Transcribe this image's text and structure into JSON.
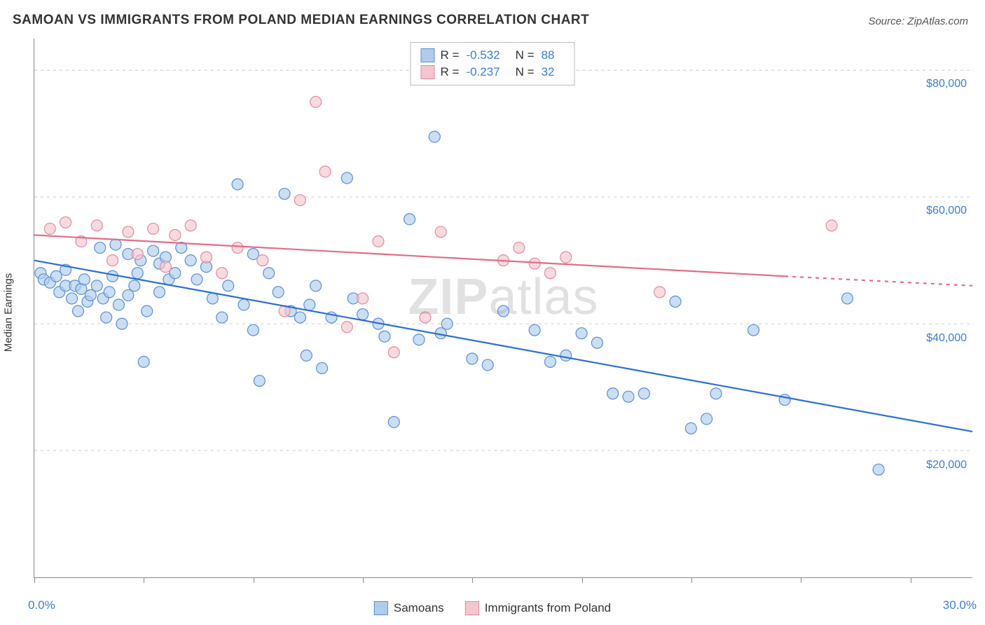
{
  "title": "SAMOAN VS IMMIGRANTS FROM POLAND MEDIAN EARNINGS CORRELATION CHART",
  "source": "Source: ZipAtlas.com",
  "watermark_bold": "ZIP",
  "watermark_light": "atlas",
  "ylabel": "Median Earnings",
  "chart": {
    "type": "scatter",
    "xlim": [
      0,
      30
    ],
    "ylim": [
      0,
      85000
    ],
    "x_axis_min_label": "0.0%",
    "x_axis_max_label": "30.0%",
    "y_ticks": [
      20000,
      40000,
      60000,
      80000
    ],
    "y_tick_labels": [
      "$20,000",
      "$40,000",
      "$60,000",
      "$80,000"
    ],
    "x_tick_positions": [
      0,
      3.5,
      7,
      10.5,
      14,
      17.5,
      21,
      24.5,
      28
    ],
    "grid_color": "#cccccc",
    "background_color": "#ffffff",
    "axis_color": "#888888",
    "axis_label_color": "#3b7dd8",
    "marker_radius": 8,
    "marker_stroke_width": 1.2,
    "line_width": 2.2
  },
  "series": [
    {
      "name": "Samoans",
      "fill": "#aeccee",
      "fill_opacity": 0.65,
      "stroke": "#5b8fd6",
      "line_color": "#2a6fd6",
      "R": "-0.532",
      "N": "88",
      "regression": {
        "x1": 0,
        "y1": 50000,
        "x2": 30,
        "y2": 23000,
        "dash_from_x": 30
      },
      "points": [
        [
          0.2,
          48000
        ],
        [
          0.3,
          47000
        ],
        [
          0.5,
          46500
        ],
        [
          0.7,
          47500
        ],
        [
          0.8,
          45000
        ],
        [
          1.0,
          46000
        ],
        [
          1.0,
          48500
        ],
        [
          1.2,
          44000
        ],
        [
          1.3,
          46000
        ],
        [
          1.4,
          42000
        ],
        [
          1.5,
          45500
        ],
        [
          1.6,
          47000
        ],
        [
          1.7,
          43500
        ],
        [
          1.8,
          44500
        ],
        [
          2.0,
          46000
        ],
        [
          2.1,
          52000
        ],
        [
          2.2,
          44000
        ],
        [
          2.3,
          41000
        ],
        [
          2.4,
          45000
        ],
        [
          2.5,
          47500
        ],
        [
          2.6,
          52500
        ],
        [
          2.7,
          43000
        ],
        [
          2.8,
          40000
        ],
        [
          3.0,
          51000
        ],
        [
          3.0,
          44500
        ],
        [
          3.2,
          46000
        ],
        [
          3.3,
          48000
        ],
        [
          3.4,
          50000
        ],
        [
          3.5,
          34000
        ],
        [
          3.6,
          42000
        ],
        [
          3.8,
          51500
        ],
        [
          4.0,
          49500
        ],
        [
          4.0,
          45000
        ],
        [
          4.2,
          50500
        ],
        [
          4.3,
          47000
        ],
        [
          4.5,
          48000
        ],
        [
          4.7,
          52000
        ],
        [
          5.0,
          50000
        ],
        [
          5.2,
          47000
        ],
        [
          5.5,
          49000
        ],
        [
          5.7,
          44000
        ],
        [
          6.0,
          41000
        ],
        [
          6.2,
          46000
        ],
        [
          6.5,
          62000
        ],
        [
          6.7,
          43000
        ],
        [
          7.0,
          39000
        ],
        [
          7.0,
          51000
        ],
        [
          7.2,
          31000
        ],
        [
          7.5,
          48000
        ],
        [
          7.8,
          45000
        ],
        [
          8.0,
          60500
        ],
        [
          8.2,
          42000
        ],
        [
          8.5,
          41000
        ],
        [
          8.7,
          35000
        ],
        [
          8.8,
          43000
        ],
        [
          9.0,
          46000
        ],
        [
          9.2,
          33000
        ],
        [
          9.5,
          41000
        ],
        [
          10.0,
          63000
        ],
        [
          10.2,
          44000
        ],
        [
          10.5,
          41500
        ],
        [
          11.0,
          40000
        ],
        [
          11.2,
          38000
        ],
        [
          11.5,
          24500
        ],
        [
          12.0,
          56500
        ],
        [
          12.3,
          37500
        ],
        [
          12.8,
          69500
        ],
        [
          13.0,
          38500
        ],
        [
          13.2,
          40000
        ],
        [
          14.0,
          34500
        ],
        [
          14.5,
          33500
        ],
        [
          15.0,
          42000
        ],
        [
          16.0,
          39000
        ],
        [
          16.5,
          34000
        ],
        [
          17.0,
          35000
        ],
        [
          17.5,
          38500
        ],
        [
          18.0,
          37000
        ],
        [
          18.5,
          29000
        ],
        [
          19.0,
          28500
        ],
        [
          19.5,
          29000
        ],
        [
          20.5,
          43500
        ],
        [
          21.0,
          23500
        ],
        [
          21.5,
          25000
        ],
        [
          21.8,
          29000
        ],
        [
          23.0,
          39000
        ],
        [
          24.0,
          28000
        ],
        [
          26.0,
          44000
        ],
        [
          27.0,
          17000
        ]
      ]
    },
    {
      "name": "Immigrants from Poland",
      "fill": "#f4c6ce",
      "fill_opacity": 0.65,
      "stroke": "#e48ba0",
      "line_color": "#e26d88",
      "R": "-0.237",
      "N": "32",
      "regression": {
        "x1": 0,
        "y1": 54000,
        "x2": 24,
        "y2": 47500,
        "dash_from_x": 24,
        "x3": 30,
        "y3": 46000
      },
      "points": [
        [
          0.5,
          55000
        ],
        [
          1.0,
          56000
        ],
        [
          1.5,
          53000
        ],
        [
          2.0,
          55500
        ],
        [
          2.5,
          50000
        ],
        [
          3.0,
          54500
        ],
        [
          3.3,
          51000
        ],
        [
          3.8,
          55000
        ],
        [
          4.2,
          49000
        ],
        [
          4.5,
          54000
        ],
        [
          5.0,
          55500
        ],
        [
          5.5,
          50500
        ],
        [
          6.0,
          48000
        ],
        [
          6.5,
          52000
        ],
        [
          7.3,
          50000
        ],
        [
          8.0,
          42000
        ],
        [
          8.5,
          59500
        ],
        [
          9.0,
          75000
        ],
        [
          9.3,
          64000
        ],
        [
          10.0,
          39500
        ],
        [
          10.5,
          44000
        ],
        [
          11.0,
          53000
        ],
        [
          11.5,
          35500
        ],
        [
          12.5,
          41000
        ],
        [
          13.0,
          54500
        ],
        [
          15.0,
          50000
        ],
        [
          15.5,
          52000
        ],
        [
          16.0,
          49500
        ],
        [
          16.5,
          48000
        ],
        [
          17.0,
          50500
        ],
        [
          20.0,
          45000
        ],
        [
          25.5,
          55500
        ]
      ]
    }
  ],
  "legend_bottom": [
    {
      "label": "Samoans",
      "swatch_fill": "#aeccee",
      "swatch_stroke": "#5b8fd6"
    },
    {
      "label": "Immigrants from Poland",
      "swatch_fill": "#f4c6ce",
      "swatch_stroke": "#e48ba0"
    }
  ]
}
